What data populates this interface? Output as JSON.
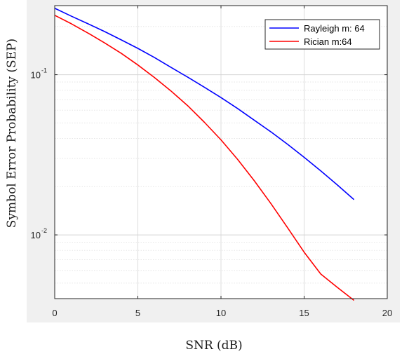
{
  "chart_data": {
    "type": "line",
    "xlabel": "SNR (dB)",
    "ylabel": "Symbol Error Probability (SEP)",
    "xlim": [
      0,
      20
    ],
    "ylim": [
      0.004,
      0.27
    ],
    "yscale": "log",
    "grid": true,
    "minor_grid": true,
    "x_ticks": [
      0,
      5,
      10,
      15,
      20
    ],
    "x_tick_labels": [
      "0",
      "5",
      "10",
      "15",
      "20"
    ],
    "y_ticks": [
      0.1,
      0.01
    ],
    "y_tick_labels": [
      {
        "base": "10",
        "exp": "-1"
      },
      {
        "base": "10",
        "exp": "-2"
      }
    ],
    "legend": {
      "location": "top-right"
    },
    "series": [
      {
        "name": "Rayleigh m: 64",
        "color": "#0000ff",
        "x": [
          0,
          1,
          2,
          3,
          4,
          5,
          6,
          7,
          8,
          9,
          10,
          11,
          12,
          13,
          14,
          15,
          16,
          17,
          18
        ],
        "y": [
          0.26,
          0.232,
          0.208,
          0.186,
          0.165,
          0.146,
          0.128,
          0.111,
          0.0965,
          0.0835,
          0.072,
          0.0615,
          0.052,
          0.044,
          0.0368,
          0.0305,
          0.0251,
          0.0205,
          0.0166
        ]
      },
      {
        "name": "Rician m:64",
        "color": "#ff0000",
        "x": [
          0,
          1,
          2,
          3,
          4,
          5,
          6,
          7,
          8,
          9,
          10,
          11,
          12,
          13,
          14,
          15,
          16,
          17,
          18
        ],
        "y": [
          0.235,
          0.208,
          0.182,
          0.158,
          0.136,
          0.115,
          0.096,
          0.079,
          0.064,
          0.0505,
          0.0392,
          0.0296,
          0.0218,
          0.0157,
          0.0111,
          0.0078,
          0.0057,
          0.0047,
          0.0039
        ]
      }
    ]
  }
}
